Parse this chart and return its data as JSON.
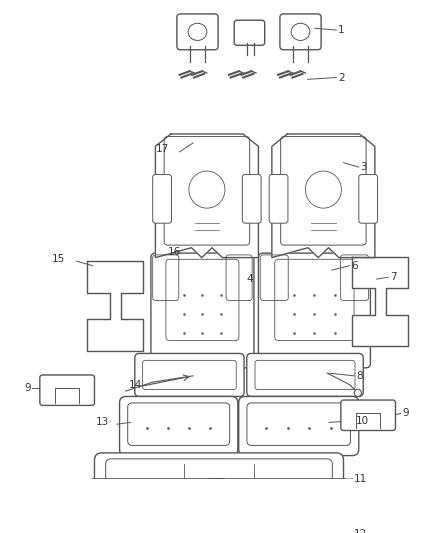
{
  "bg_color": "#ffffff",
  "line_color": "#555555",
  "line_width": 1.0,
  "fig_width": 4.38,
  "fig_height": 5.33
}
